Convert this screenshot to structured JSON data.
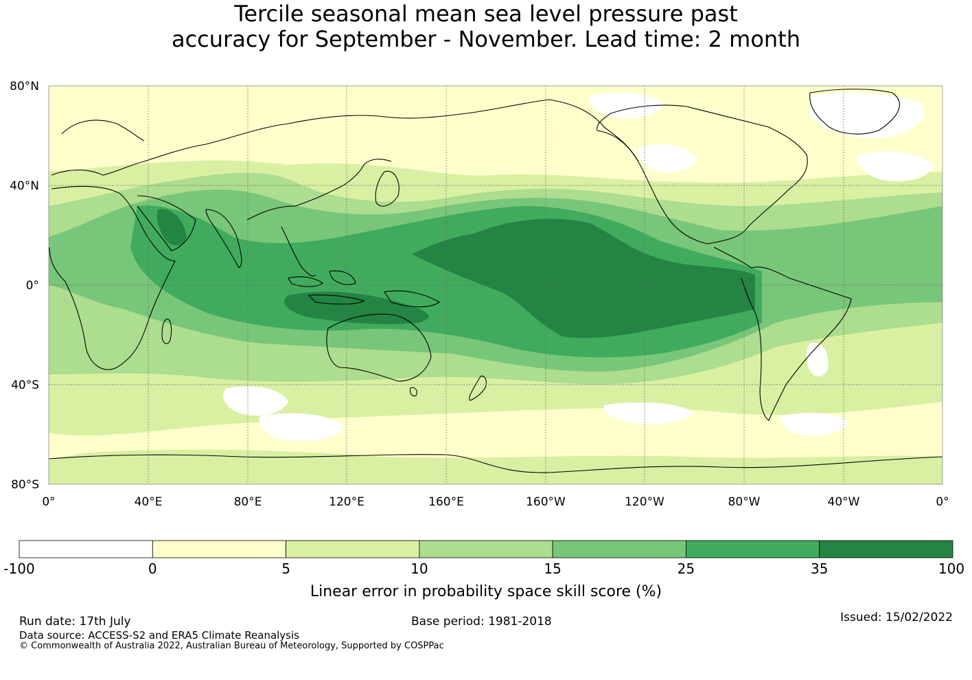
{
  "title_line1": "Tercile seasonal mean sea level pressure past",
  "title_line2": "accuracy for September - November. Lead time: 2 month",
  "map": {
    "lat_labels": [
      "80°N",
      "40°N",
      "0°",
      "40°S",
      "80°S"
    ],
    "lon_labels": [
      "0°",
      "40°E",
      "80°E",
      "120°E",
      "160°E",
      "160°W",
      "120°W",
      "80°W",
      "40°W",
      "0°"
    ]
  },
  "colorbar": {
    "bins": [
      {
        "from": "-100",
        "to": "0",
        "color": "#ffffff"
      },
      {
        "from": "0",
        "to": "5",
        "color": "#ffffcc"
      },
      {
        "from": "5",
        "to": "10",
        "color": "#d9f0a3"
      },
      {
        "from": "10",
        "to": "15",
        "color": "#addd8e"
      },
      {
        "from": "15",
        "to": "25",
        "color": "#78c679"
      },
      {
        "from": "25",
        "to": "35",
        "color": "#41ab5d"
      },
      {
        "from": "35",
        "to": "100",
        "color": "#238443"
      }
    ],
    "tick_labels": [
      "-100",
      "0",
      "5",
      "10",
      "15",
      "25",
      "35",
      "100"
    ],
    "label": "Linear error in probability space skill score (%)"
  },
  "footer": {
    "run_date": "Run date: 17th July",
    "base_period": "Base period: 1981-2018",
    "issued": "Issued: 15/02/2022",
    "data_source": "Data source: ACCESS-S2 and ERA5 Climate Reanalysis",
    "copyright": "© Commonwealth of Australia 2022, Australian Bureau of Meteorology, Supported by COSPPac"
  }
}
